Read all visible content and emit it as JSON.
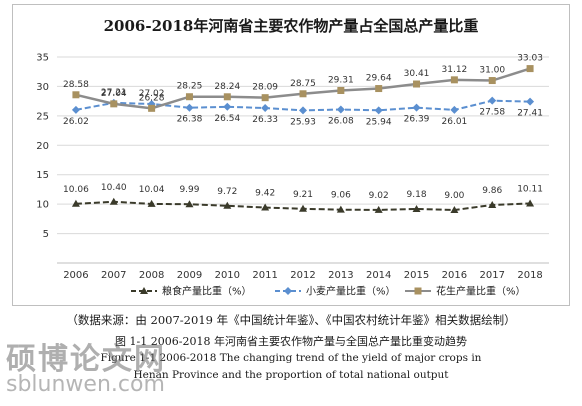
{
  "chart_data": {
    "type": "line",
    "title": "2006-2018年河南省主要农作物产量占全国总产量比重",
    "xlabel": "",
    "ylabel": "",
    "categories": [
      "2006",
      "2007",
      "2008",
      "2009",
      "2010",
      "2011",
      "2012",
      "2013",
      "2014",
      "2015",
      "2016",
      "2017",
      "2018"
    ],
    "ylim": [
      0,
      35
    ],
    "yticks": [
      5,
      10,
      15,
      20,
      25,
      30,
      35
    ],
    "grid": true,
    "legend": "bottom",
    "series": [
      {
        "name": "粮食产量比重（%）",
        "color": "#3a3a2a",
        "style": "dashed",
        "marker": "triangle",
        "values": [
          10.06,
          10.4,
          10.04,
          9.99,
          9.72,
          9.42,
          9.21,
          9.06,
          9.02,
          9.18,
          9.0,
          9.86,
          10.11
        ],
        "labels": [
          "10.06",
          "10.40",
          "10.04",
          "9.99",
          "9.72",
          "9.42",
          "9.21",
          "9.06",
          "9.02",
          "9.18",
          "9.00",
          "9.86",
          "10.11"
        ]
      },
      {
        "name": "小麦产量比重（%）",
        "color": "#5b8fd0",
        "style": "dashed",
        "marker": "diamond",
        "values": [
          26.02,
          27.21,
          27.02,
          26.38,
          26.54,
          26.33,
          25.93,
          26.08,
          25.94,
          26.39,
          26.01,
          27.58,
          27.41
        ],
        "labels": [
          "26.02",
          "27.21",
          "27.02",
          "26.38",
          "26.54",
          "26.33",
          "25.93",
          "26.08",
          "25.94",
          "26.39",
          "26.01",
          "27.58",
          "27.41"
        ]
      },
      {
        "name": "花生产量比重（%）",
        "color": "#8c8c8c",
        "style": "solid",
        "marker": "square",
        "marker_color": "#a89160",
        "values": [
          28.58,
          27.04,
          26.28,
          28.25,
          28.24,
          28.09,
          28.75,
          29.31,
          29.64,
          30.41,
          31.12,
          31.0,
          33.03
        ],
        "labels": [
          "28.58",
          "27.04",
          "26.28",
          "28.25",
          "28.24",
          "28.09",
          "28.75",
          "29.31",
          "29.64",
          "30.41",
          "31.12",
          "31.00",
          "33.03"
        ]
      }
    ]
  },
  "caption": {
    "source_note": "（数据来源：由 2007-2019 年《中国统计年鉴》、《中国农村统计年鉴》相关数据绘制）",
    "figure_cn": "图 1-1 2006-2018 年河南省主要农作物产量与全国总产量比重变动趋势",
    "figure_en_line1": "Figure 1-1 2006-2018 The changing trend of the yield of major crops in",
    "figure_en_line2": "Henan Province and the proportion of total national output"
  },
  "watermark": {
    "text_cn": "硕博论文网",
    "url": "sblunwen.com"
  }
}
